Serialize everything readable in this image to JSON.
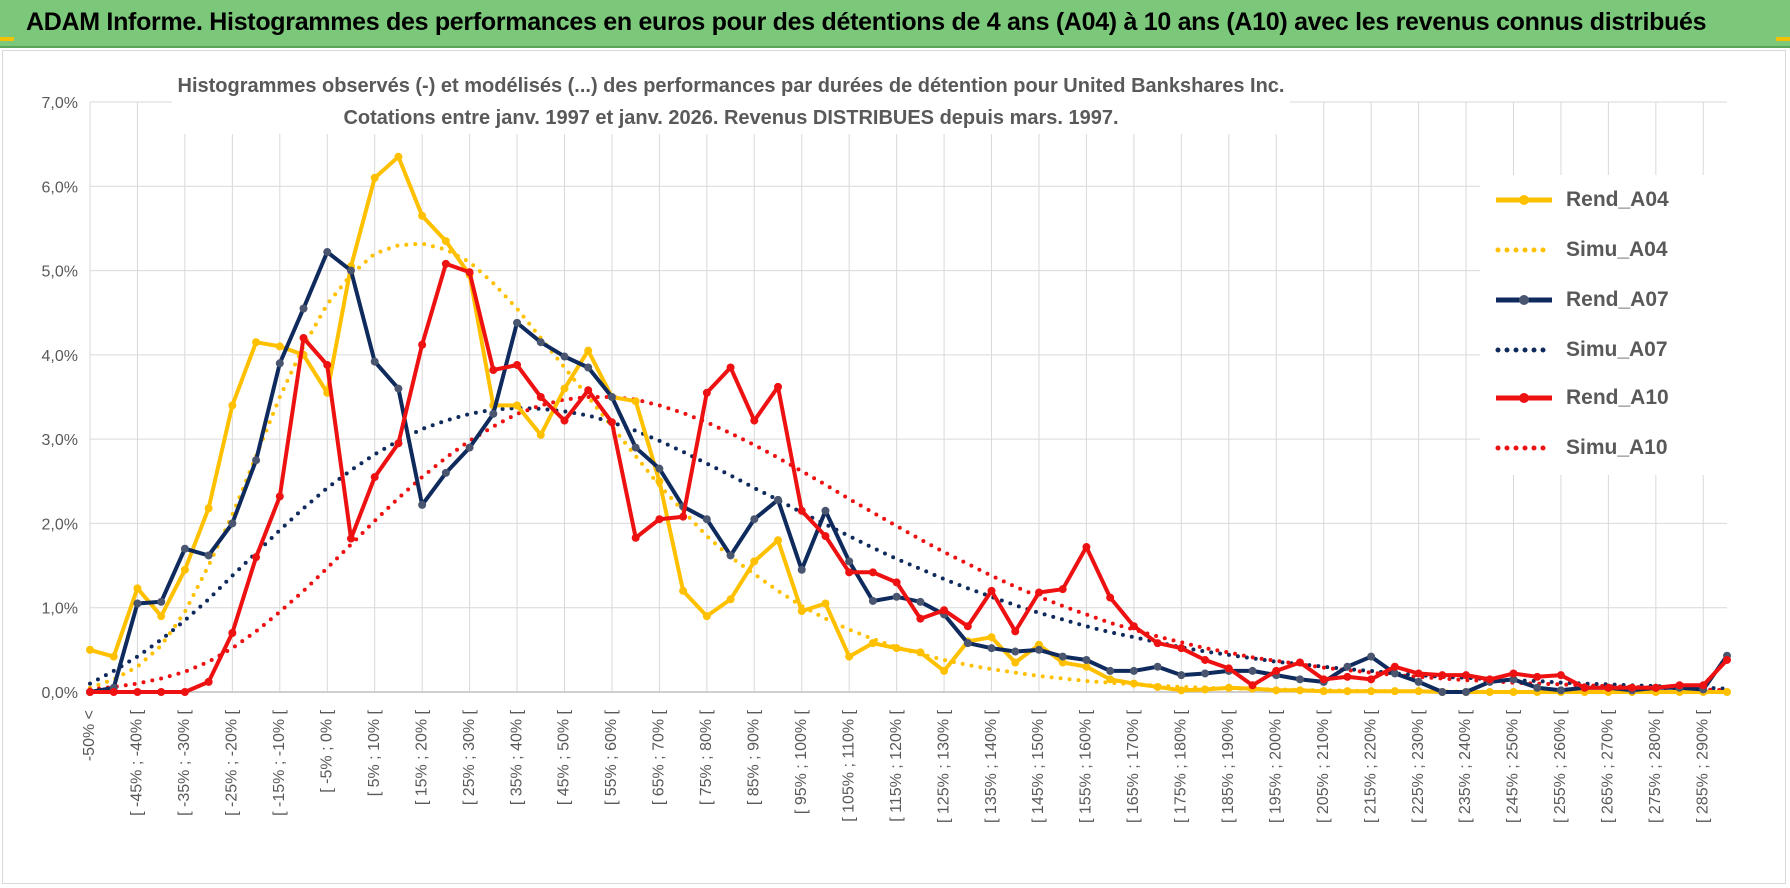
{
  "banner_title": "ADAM Informe. Histogrammes des performances en euros pour des détentions de 4 ans (A04) à 10 ans (A10) avec les revenus connus distribués",
  "colors": {
    "banner": "#7bc87b",
    "A04": "#ffc000",
    "A07": "#0f2a5c",
    "A10": "#ee1111",
    "grid": "#d9d9d9",
    "text": "#595959"
  },
  "chart_data": {
    "type": "line",
    "title": "Histogrammes observés (-) et modélisés (...) des performances par durées de détention pour United Bankshares Inc.",
    "subtitle": "Cotations entre janv. 1997 et janv. 2026. Revenus DISTRIBUES depuis mars. 1997.",
    "xlabel": "",
    "ylabel": "",
    "ylim": [
      0,
      7
    ],
    "y_ticks": [
      "0,0%",
      "1,0%",
      "2,0%",
      "3,0%",
      "4,0%",
      "5,0%",
      "6,0%",
      "7,0%"
    ],
    "x_tick_labels": [
      "-50% <",
      "[ -45% ; -40% [",
      "[ -35% ; -30% [",
      "[ -25% ; -20% [",
      "[ -15% ; -10% [",
      "[ -5% ; 0% [",
      "[ 5% ; 10% [",
      "[ 15% ; 20% [",
      "[ 25% ; 30% [",
      "[ 35% ; 40% [",
      "[ 45% ; 50% [",
      "[ 55% ; 60% [",
      "[ 65% ; 70% [",
      "[ 75% ; 80% [",
      "[ 85% ; 90% [",
      "[ 95% ; 100% [",
      "[ 105% ; 110% [",
      "[ 115% ; 120% [",
      "[ 125% ; 130% [",
      "[ 135% ; 140% [",
      "[ 145% ; 150% [",
      "[ 155% ; 160% [",
      "[ 165% ; 170% [",
      "[ 175% ; 180% [",
      "[ 185% ; 190% [",
      "[ 195% ; 200% [",
      "[ 205% ; 210% [",
      "[ 215% ; 220% [",
      "[ 225% ; 230% [",
      "[ 235% ; 240% [",
      "[ 245% ; 250% [",
      "[ 255% ; 260% [",
      "[ 265% ; 270% [",
      "[ 275% ; 280% [",
      "[ 285% ; 290% ["
    ],
    "n_bins": 70,
    "legend_position": "right",
    "series": [
      {
        "name": "Rend_A04",
        "style": "solid",
        "color": "#ffc000",
        "values": [
          0.5,
          0.42,
          1.23,
          0.9,
          1.45,
          2.18,
          3.4,
          4.15,
          4.1,
          4.0,
          3.55,
          5.05,
          6.1,
          6.35,
          5.65,
          5.35,
          4.95,
          3.4,
          3.4,
          3.05,
          3.6,
          4.05,
          3.5,
          3.45,
          2.5,
          1.2,
          0.9,
          1.1,
          1.55,
          1.8,
          0.96,
          1.05,
          0.42,
          0.58,
          0.52,
          0.47,
          0.25,
          0.6,
          0.65,
          0.35,
          0.56,
          0.35,
          0.3,
          0.15,
          0.1,
          0.06,
          0.02,
          0.03,
          0.05,
          0.04,
          0.02,
          0.02,
          0.01,
          0.01,
          0.01,
          0.01,
          0.01,
          0.0,
          0.0,
          0.0,
          0.0,
          0.0,
          0.0,
          0.0,
          0.0,
          0.0,
          0.0,
          0.0,
          0.0,
          0.0
        ]
      },
      {
        "name": "Simu_A04",
        "style": "dotted",
        "color": "#ffc000",
        "values": [
          0.05,
          0.15,
          0.3,
          0.55,
          0.95,
          1.5,
          2.1,
          2.8,
          3.5,
          4.1,
          4.6,
          4.95,
          5.2,
          5.3,
          5.32,
          5.25,
          5.1,
          4.85,
          4.55,
          4.2,
          3.85,
          3.5,
          3.15,
          2.8,
          2.45,
          2.15,
          1.85,
          1.6,
          1.4,
          1.2,
          1.02,
          0.87,
          0.74,
          0.63,
          0.53,
          0.45,
          0.38,
          0.32,
          0.27,
          0.23,
          0.19,
          0.16,
          0.13,
          0.11,
          0.09,
          0.075,
          0.06,
          0.05,
          0.04,
          0.035,
          0.03,
          0.025,
          0.02,
          0.015,
          0.012,
          0.01,
          0.008,
          0.006,
          0.005,
          0.004,
          0.003,
          0.002,
          0.002,
          0.001,
          0.001,
          0.001,
          0.0,
          0.0,
          0.0,
          0.0
        ]
      },
      {
        "name": "Rend_A07",
        "style": "solid",
        "color": "#0f2a5c",
        "values": [
          0.0,
          0.05,
          1.05,
          1.07,
          1.7,
          1.62,
          2.0,
          2.75,
          3.9,
          4.55,
          5.22,
          5.0,
          3.92,
          3.6,
          2.22,
          2.6,
          2.9,
          3.3,
          4.38,
          4.15,
          3.98,
          3.85,
          3.5,
          2.9,
          2.65,
          2.2,
          2.05,
          1.62,
          2.05,
          2.28,
          1.45,
          2.15,
          1.55,
          1.08,
          1.13,
          1.07,
          0.92,
          0.58,
          0.52,
          0.48,
          0.5,
          0.42,
          0.38,
          0.25,
          0.25,
          0.3,
          0.2,
          0.22,
          0.25,
          0.25,
          0.2,
          0.15,
          0.12,
          0.3,
          0.42,
          0.22,
          0.12,
          0.0,
          0.0,
          0.12,
          0.15,
          0.05,
          0.02,
          0.05,
          0.05,
          0.02,
          0.05,
          0.05,
          0.03,
          0.43
        ]
      },
      {
        "name": "Simu_A07",
        "style": "dotted",
        "color": "#0f2a5c",
        "values": [
          0.1,
          0.25,
          0.42,
          0.62,
          0.85,
          1.1,
          1.38,
          1.65,
          1.92,
          2.18,
          2.42,
          2.63,
          2.82,
          2.98,
          3.12,
          3.22,
          3.3,
          3.35,
          3.37,
          3.36,
          3.33,
          3.28,
          3.2,
          3.1,
          2.98,
          2.85,
          2.71,
          2.57,
          2.42,
          2.28,
          2.13,
          1.99,
          1.85,
          1.71,
          1.58,
          1.46,
          1.34,
          1.23,
          1.13,
          1.03,
          0.94,
          0.86,
          0.78,
          0.71,
          0.65,
          0.59,
          0.53,
          0.48,
          0.44,
          0.4,
          0.36,
          0.33,
          0.3,
          0.27,
          0.25,
          0.22,
          0.2,
          0.18,
          0.17,
          0.15,
          0.14,
          0.13,
          0.11,
          0.1,
          0.09,
          0.08,
          0.07,
          0.06,
          0.05,
          0.04
        ]
      },
      {
        "name": "Rend_A10",
        "style": "solid",
        "color": "#ee1111",
        "values": [
          0.0,
          0.0,
          0.0,
          0.0,
          0.0,
          0.12,
          0.7,
          1.6,
          2.32,
          4.2,
          3.88,
          1.82,
          2.55,
          2.95,
          4.12,
          5.08,
          4.98,
          3.82,
          3.88,
          3.5,
          3.22,
          3.58,
          3.2,
          1.83,
          2.05,
          2.08,
          3.55,
          3.85,
          3.22,
          3.62,
          2.15,
          1.85,
          1.42,
          1.42,
          1.3,
          0.87,
          0.97,
          0.78,
          1.2,
          0.72,
          1.18,
          1.22,
          1.72,
          1.12,
          0.78,
          0.58,
          0.52,
          0.38,
          0.28,
          0.08,
          0.25,
          0.35,
          0.15,
          0.18,
          0.15,
          0.3,
          0.22,
          0.2,
          0.2,
          0.15,
          0.22,
          0.18,
          0.2,
          0.05,
          0.05,
          0.05,
          0.05,
          0.08,
          0.08,
          0.38
        ]
      },
      {
        "name": "Simu_A10",
        "style": "dotted",
        "color": "#ee1111",
        "values": [
          0.03,
          0.06,
          0.1,
          0.16,
          0.24,
          0.36,
          0.52,
          0.72,
          0.95,
          1.2,
          1.47,
          1.75,
          2.03,
          2.3,
          2.55,
          2.78,
          2.98,
          3.15,
          3.3,
          3.4,
          3.47,
          3.5,
          3.5,
          3.47,
          3.4,
          3.31,
          3.2,
          3.07,
          2.93,
          2.78,
          2.62,
          2.46,
          2.29,
          2.13,
          1.97,
          1.81,
          1.66,
          1.52,
          1.38,
          1.25,
          1.13,
          1.02,
          0.92,
          0.82,
          0.74,
          0.66,
          0.59,
          0.52,
          0.47,
          0.41,
          0.37,
          0.33,
          0.29,
          0.26,
          0.23,
          0.2,
          0.18,
          0.16,
          0.14,
          0.13,
          0.11,
          0.1,
          0.09,
          0.08,
          0.07,
          0.06,
          0.05,
          0.04,
          0.03,
          0.02
        ]
      }
    ]
  }
}
